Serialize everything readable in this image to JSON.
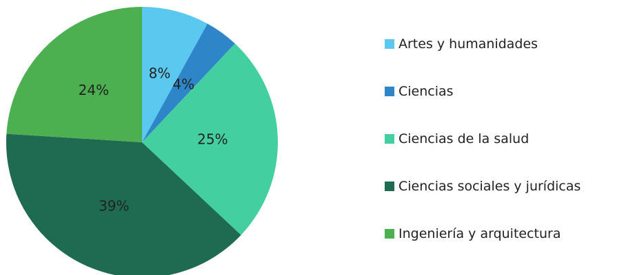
{
  "chart_data": {
    "type": "pie",
    "categories": [
      "Artes y humanidades",
      "Ciencias",
      "Ciencias de la salud",
      "Ciencias sociales y jurídicas",
      "Ingeniería y arquitectura"
    ],
    "values": [
      8,
      4,
      25,
      39,
      24
    ],
    "value_labels": [
      "8%",
      "4%",
      "25%",
      "39%",
      "24%"
    ],
    "colors": [
      "#5bc8f0",
      "#2e86c8",
      "#44cfa0",
      "#1e6b52",
      "#4caf50"
    ],
    "legend": "right"
  }
}
